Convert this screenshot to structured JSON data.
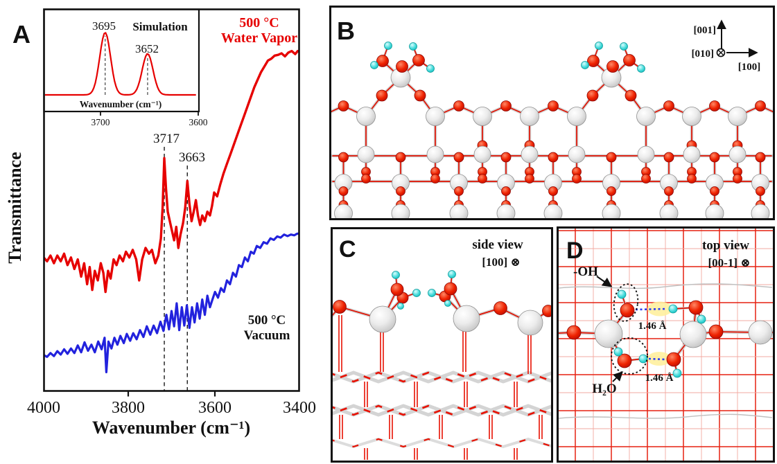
{
  "colors": {
    "spectrum_red": "#e60000",
    "spectrum_blue": "#2222dd",
    "oxygen_red": "#dd1000",
    "titanium_gray": "#d9d9d9",
    "hydrogen_cyan": "#45e0e0",
    "hbond_highlight": "#ffef9e",
    "hbond_blue": "#2b3cf0"
  },
  "panel_a": {
    "label": "A",
    "ylabel": "Transmittance",
    "xlabel": "Wavenumber (cm⁻¹)",
    "x_ticks": [
      "4000",
      "3800",
      "3600",
      "3400"
    ],
    "red_curve_annotation": [
      "500 °C",
      "Water Vapor"
    ],
    "blue_curve_annotation": [
      "500 °C",
      "Vacuum"
    ],
    "peak_labels": [
      "3717",
      "3663"
    ],
    "inset": {
      "title": "Simulation",
      "peak_labels": [
        "3695",
        "3652"
      ],
      "xlabel": "Wavenumber (cm⁻¹)",
      "x_ticks": [
        "3700",
        "3600"
      ]
    }
  },
  "panel_b": {
    "label": "B",
    "axis_up": "[001]",
    "axis_into": "[010]",
    "axis_right": "[100]"
  },
  "panel_c": {
    "label": "C",
    "view": "side view",
    "direction": "[100] ⊗"
  },
  "panel_d": {
    "label": "D",
    "view": "top view",
    "direction": "[00-1] ⊗",
    "hydroxyl_label": "-OH",
    "water_label": "H₂O",
    "hbond_distance_top": "1.46 Å",
    "hbond_distance_bottom": "1.46 Å"
  },
  "chart_data": {
    "type": "line",
    "title": "",
    "xlabel": "Wavenumber (cm⁻¹)",
    "ylabel": "Transmittance",
    "x_range": [
      4000,
      3400
    ],
    "x_ticks": [
      4000,
      3800,
      3600,
      3400
    ],
    "y_units": "arbitrary units (0-100 of plot height)",
    "grid": false,
    "series": [
      {
        "name": "500 °C Water Vapor",
        "color": "#e60000",
        "peak_annotations": [
          3717,
          3663
        ],
        "points": [
          [
            4000,
            35
          ],
          [
            3992,
            34
          ],
          [
            3984,
            35.5
          ],
          [
            3976,
            33.5
          ],
          [
            3968,
            35.5
          ],
          [
            3960,
            34
          ],
          [
            3952,
            36
          ],
          [
            3944,
            33
          ],
          [
            3936,
            35
          ],
          [
            3928,
            32
          ],
          [
            3920,
            34.5
          ],
          [
            3912,
            30
          ],
          [
            3905,
            33.5
          ],
          [
            3898,
            28
          ],
          [
            3892,
            32.5
          ],
          [
            3886,
            26.5
          ],
          [
            3880,
            31.5
          ],
          [
            3873,
            29
          ],
          [
            3866,
            33.5
          ],
          [
            3860,
            31
          ],
          [
            3855,
            26
          ],
          [
            3849,
            31.5
          ],
          [
            3843,
            29.5
          ],
          [
            3836,
            34.5
          ],
          [
            3829,
            33
          ],
          [
            3822,
            35.5
          ],
          [
            3814,
            34
          ],
          [
            3807,
            36.5
          ],
          [
            3799,
            35
          ],
          [
            3791,
            37
          ],
          [
            3783,
            34.5
          ],
          [
            3776,
            29
          ],
          [
            3769,
            34.5
          ],
          [
            3761,
            37.5
          ],
          [
            3753,
            36
          ],
          [
            3746,
            37
          ],
          [
            3738,
            33.5
          ],
          [
            3731,
            35.5
          ],
          [
            3725,
            40
          ],
          [
            3721,
            48
          ],
          [
            3717,
            61
          ],
          [
            3713,
            53
          ],
          [
            3709,
            47
          ],
          [
            3704,
            44.5
          ],
          [
            3699,
            42
          ],
          [
            3694,
            39.5
          ],
          [
            3689,
            43
          ],
          [
            3684,
            37.5
          ],
          [
            3679,
            41
          ],
          [
            3673,
            44
          ],
          [
            3668,
            48
          ],
          [
            3663,
            55
          ],
          [
            3658,
            49
          ],
          [
            3653,
            44.5
          ],
          [
            3648,
            47
          ],
          [
            3643,
            50
          ],
          [
            3638,
            46
          ],
          [
            3633,
            43.5
          ],
          [
            3628,
            46
          ],
          [
            3622,
            44.5
          ],
          [
            3616,
            47
          ],
          [
            3610,
            46
          ],
          [
            3605,
            48.5
          ],
          [
            3600,
            52
          ],
          [
            3593,
            51
          ],
          [
            3586,
            54
          ],
          [
            3578,
            57
          ],
          [
            3570,
            59.5
          ],
          [
            3562,
            62
          ],
          [
            3554,
            64.5
          ],
          [
            3546,
            67
          ],
          [
            3538,
            69.5
          ],
          [
            3530,
            72
          ],
          [
            3522,
            74.5
          ],
          [
            3514,
            77
          ],
          [
            3506,
            79.5
          ],
          [
            3498,
            81.5
          ],
          [
            3490,
            83.5
          ],
          [
            3482,
            85
          ],
          [
            3474,
            86.5
          ],
          [
            3466,
            87
          ],
          [
            3458,
            87.8
          ],
          [
            3450,
            88
          ],
          [
            3442,
            88.4
          ],
          [
            3434,
            87.6
          ],
          [
            3426,
            88.6
          ],
          [
            3418,
            89
          ],
          [
            3410,
            88.2
          ],
          [
            3404,
            89
          ],
          [
            3400,
            88.8
          ]
        ]
      },
      {
        "name": "500 °C Vacuum",
        "color": "#2222dd",
        "points": [
          [
            4000,
            9.5
          ],
          [
            3992,
            9
          ],
          [
            3984,
            10
          ],
          [
            3976,
            9.2
          ],
          [
            3968,
            10.5
          ],
          [
            3960,
            9.6
          ],
          [
            3952,
            11
          ],
          [
            3944,
            9.8
          ],
          [
            3936,
            11.2
          ],
          [
            3928,
            10
          ],
          [
            3920,
            12
          ],
          [
            3912,
            10.2
          ],
          [
            3904,
            12.8
          ],
          [
            3896,
            10.6
          ],
          [
            3888,
            12.2
          ],
          [
            3880,
            10.2
          ],
          [
            3872,
            13
          ],
          [
            3864,
            11
          ],
          [
            3857,
            14
          ],
          [
            3853,
            5
          ],
          [
            3848,
            13
          ],
          [
            3841,
            11.2
          ],
          [
            3834,
            14
          ],
          [
            3827,
            12.2
          ],
          [
            3820,
            14.5
          ],
          [
            3812,
            12.6
          ],
          [
            3805,
            15
          ],
          [
            3797,
            13.2
          ],
          [
            3790,
            15.2
          ],
          [
            3782,
            13.6
          ],
          [
            3774,
            16
          ],
          [
            3766,
            14.2
          ],
          [
            3758,
            17
          ],
          [
            3750,
            14.8
          ],
          [
            3742,
            17.2
          ],
          [
            3734,
            15.2
          ],
          [
            3726,
            18.2
          ],
          [
            3719,
            15.8
          ],
          [
            3712,
            20
          ],
          [
            3706,
            16.2
          ],
          [
            3700,
            21
          ],
          [
            3694,
            17
          ],
          [
            3688,
            23
          ],
          [
            3682,
            16
          ],
          [
            3676,
            22
          ],
          [
            3670,
            17.2
          ],
          [
            3664,
            22.5
          ],
          [
            3658,
            16.6
          ],
          [
            3652,
            22
          ],
          [
            3646,
            18
          ],
          [
            3640,
            23
          ],
          [
            3634,
            19
          ],
          [
            3628,
            24
          ],
          [
            3622,
            20
          ],
          [
            3616,
            25
          ],
          [
            3610,
            22
          ],
          [
            3604,
            24
          ],
          [
            3598,
            26
          ],
          [
            3591,
            24.5
          ],
          [
            3584,
            27
          ],
          [
            3577,
            26
          ],
          [
            3570,
            29
          ],
          [
            3563,
            28
          ],
          [
            3556,
            31
          ],
          [
            3549,
            30
          ],
          [
            3542,
            33
          ],
          [
            3535,
            32.5
          ],
          [
            3528,
            35
          ],
          [
            3521,
            34
          ],
          [
            3514,
            36.5
          ],
          [
            3507,
            36
          ],
          [
            3500,
            38
          ],
          [
            3492,
            37.5
          ],
          [
            3484,
            39
          ],
          [
            3476,
            38.6
          ],
          [
            3468,
            40
          ],
          [
            3460,
            39.6
          ],
          [
            3452,
            40.5
          ],
          [
            3444,
            40.2
          ],
          [
            3436,
            41
          ],
          [
            3428,
            40.6
          ],
          [
            3420,
            41
          ],
          [
            3412,
            40.8
          ],
          [
            3406,
            41.2
          ],
          [
            3400,
            41.3
          ]
        ]
      }
    ],
    "inset": {
      "type": "line",
      "title": "Simulation",
      "xlabel": "Wavenumber (cm⁻¹)",
      "x_range": [
        3758,
        3600
      ],
      "x_ticks": [
        3700,
        3600
      ],
      "sigma": 5.5,
      "color": "#e60000",
      "peaks": [
        {
          "center": 3695,
          "label": "3695",
          "rel_height": 1.0
        },
        {
          "center": 3652,
          "label": "3652",
          "rel_height": 0.66
        }
      ]
    }
  }
}
